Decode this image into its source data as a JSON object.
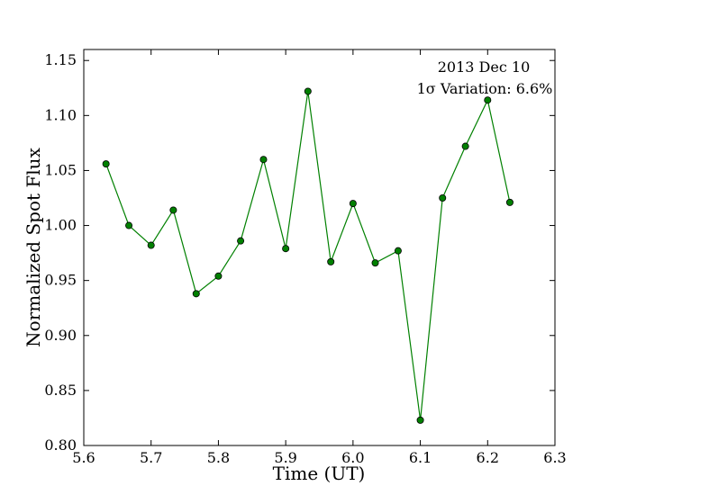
{
  "chart_data": {
    "type": "line",
    "xlabel": "Time (UT)",
    "ylabel": "Normalized Spot Flux",
    "xlim": [
      5.6,
      6.3
    ],
    "ylim": [
      0.8,
      1.16
    ],
    "xticks": [
      "5.6",
      "5.7",
      "5.8",
      "5.9",
      "6.0",
      "6.1",
      "6.2",
      "6.3"
    ],
    "yticks": [
      "0.80",
      "0.85",
      "0.90",
      "0.95",
      "1.00",
      "1.05",
      "1.10",
      "1.15"
    ],
    "grid": false,
    "annotations": [
      "2013 Dec 10",
      "1σ Variation: 6.6%"
    ],
    "series": [
      {
        "color": "#008000",
        "marker_color": "#008000",
        "x": [
          5.633,
          5.667,
          5.7,
          5.733,
          5.767,
          5.8,
          5.833,
          5.867,
          5.9,
          5.933,
          5.967,
          6.0,
          6.033,
          6.067,
          6.1,
          6.133,
          6.167,
          6.2,
          6.233
        ],
        "y": [
          1.056,
          1.0,
          0.982,
          1.014,
          0.938,
          0.954,
          0.986,
          1.06,
          0.979,
          1.122,
          0.967,
          1.02,
          0.966,
          0.977,
          0.823,
          1.025,
          1.072,
          1.114,
          1.021
        ]
      }
    ]
  }
}
